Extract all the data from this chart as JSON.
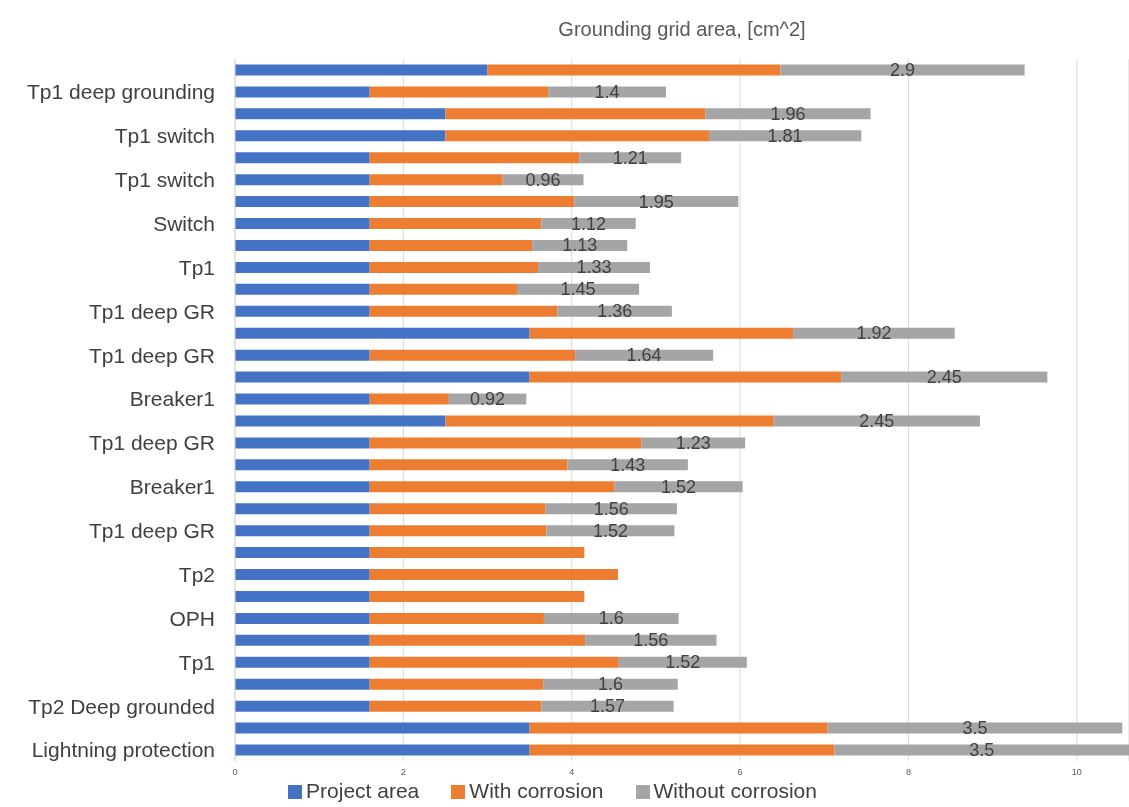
{
  "chart_data": {
    "type": "bar",
    "orientation": "horizontal",
    "stacked": true,
    "title": "Grounding grid area, [cm^2]",
    "categories": [
      null,
      "Tp1 deep grounding",
      null,
      "Tp1 switch",
      null,
      "Tp1 switch",
      null,
      "Switch",
      null,
      "Tp1",
      null,
      "Tp1 deep GR",
      null,
      "Tp1 deep GR",
      null,
      "Breaker1",
      null,
      "Tp1 deep GR",
      null,
      "Breaker1",
      null,
      "Tp1 deep GR",
      null,
      "Tp2",
      null,
      "OPH",
      null,
      "Tp1",
      null,
      "Tp2 Deep grounded",
      null,
      "Lightning protection"
    ],
    "series": [
      {
        "name": "Project area",
        "color": "#4472c4",
        "values": [
          3.0,
          1.6,
          2.5,
          2.5,
          1.6,
          1.6,
          1.6,
          1.6,
          1.6,
          1.6,
          1.6,
          1.6,
          3.5,
          1.6,
          3.5,
          1.6,
          2.5,
          1.6,
          1.6,
          1.6,
          1.6,
          1.6,
          1.6,
          1.6,
          1.6,
          1.6,
          1.6,
          1.6,
          1.6,
          1.6,
          3.5,
          3.5
        ]
      },
      {
        "name": "With corrosion",
        "color": "#ed7d31",
        "values": [
          3.48,
          2.12,
          3.09,
          3.13,
          2.49,
          1.58,
          2.43,
          2.04,
          1.93,
          2.0,
          1.75,
          2.23,
          3.13,
          2.44,
          3.7,
          0.94,
          3.9,
          3.23,
          2.35,
          2.91,
          2.09,
          2.1,
          2.55,
          2.95,
          2.55,
          2.07,
          2.56,
          2.96,
          2.06,
          2.04,
          3.54,
          3.62
        ]
      },
      {
        "name": "Without corrosion",
        "color": "#a5a5a5",
        "values": [
          2.9,
          1.4,
          1.96,
          1.81,
          1.21,
          0.96,
          1.95,
          1.12,
          1.13,
          1.33,
          1.45,
          1.36,
          1.92,
          1.64,
          2.45,
          0.92,
          2.45,
          1.23,
          1.43,
          1.52,
          1.56,
          1.52,
          null,
          null,
          null,
          1.6,
          1.56,
          1.52,
          1.6,
          1.57,
          3.5,
          3.5
        ],
        "value_labels": [
          "2.9",
          "1.4",
          "1.96",
          "1.81",
          "1.21",
          "0.96",
          "1.95",
          "1.12",
          "1.13",
          "1.33",
          "1.45",
          "1.36",
          "1.92",
          "1.64",
          "2.45",
          "0.92",
          "2.45",
          "1.23",
          "1.43",
          "1.52",
          "1.56",
          "1.52",
          null,
          null,
          null,
          "1.6",
          "1.56",
          "1.52",
          "1.6",
          "1.57",
          "3.5",
          "3.5"
        ]
      }
    ],
    "xlim": [
      0,
      10.62
    ],
    "xticks": [
      0,
      2,
      4,
      6,
      8,
      10
    ],
    "grid": "x",
    "legend": "bottom"
  }
}
